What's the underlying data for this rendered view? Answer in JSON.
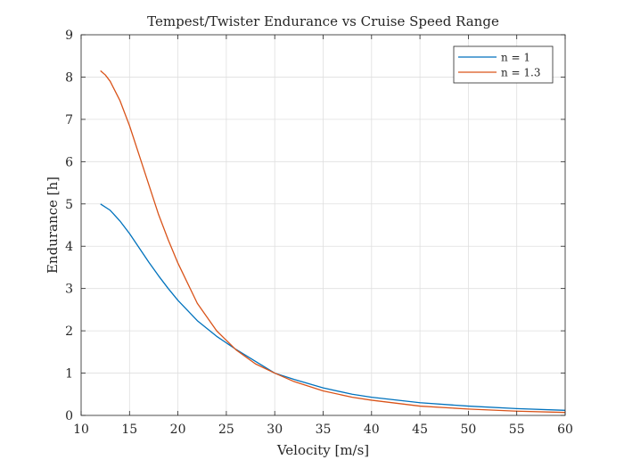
{
  "chart_data": {
    "type": "line",
    "title": "Tempest/Twister Endurance vs Cruise Speed Range",
    "xlabel": "Velocity [m/s]",
    "ylabel": "Endurance [h]",
    "xlim": [
      10,
      60
    ],
    "ylim": [
      0,
      9
    ],
    "xticks": [
      "10",
      "15",
      "20",
      "25",
      "30",
      "35",
      "40",
      "45",
      "50",
      "55",
      "60"
    ],
    "yticks": [
      "0",
      "1",
      "2",
      "3",
      "4",
      "5",
      "6",
      "7",
      "8",
      "9"
    ],
    "grid": true,
    "legend_position": "top-right",
    "series": [
      {
        "name": "n = 1",
        "color": "#0072BD",
        "x": [
          12,
          13,
          14,
          15,
          16,
          17,
          18,
          19,
          20,
          22,
          24,
          26,
          28,
          30,
          32,
          35,
          38,
          40,
          45,
          50,
          55,
          60
        ],
        "y": [
          5.0,
          4.85,
          4.6,
          4.3,
          3.96,
          3.62,
          3.3,
          3.0,
          2.72,
          2.24,
          1.87,
          1.56,
          1.28,
          1.0,
          0.85,
          0.65,
          0.5,
          0.43,
          0.3,
          0.22,
          0.16,
          0.12
        ]
      },
      {
        "name": "n = 1.3",
        "color": "#D95319",
        "x": [
          12,
          12.5,
          13,
          14,
          15,
          16,
          17,
          18,
          19,
          20,
          22,
          24,
          26,
          28,
          30,
          32,
          35,
          38,
          40,
          45,
          50,
          55,
          60
        ],
        "y": [
          8.15,
          8.05,
          7.9,
          7.45,
          6.85,
          6.15,
          5.45,
          4.75,
          4.15,
          3.6,
          2.65,
          2.0,
          1.55,
          1.22,
          1.0,
          0.8,
          0.58,
          0.43,
          0.36,
          0.22,
          0.15,
          0.1,
          0.07
        ]
      }
    ]
  }
}
